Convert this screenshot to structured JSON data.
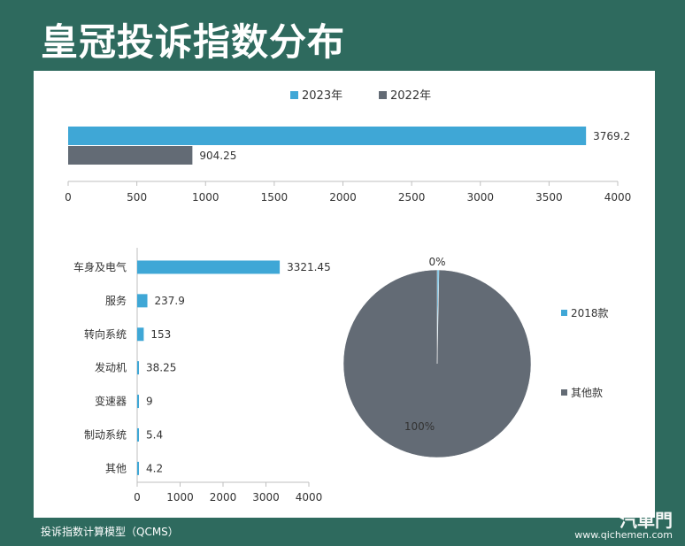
{
  "title": "皇冠投诉指数分布",
  "footer": "投诉指数计算模型（QCMS）",
  "watermark": {
    "logo": "汽車門",
    "url": "www.qichemen.com"
  },
  "colors": {
    "blue": "#3fa7d6",
    "gray": "#636b75",
    "background": "#2e6a5e"
  },
  "chart_data": [
    {
      "type": "bar",
      "orientation": "horizontal",
      "categories": [
        ""
      ],
      "series": [
        {
          "name": "2023年",
          "values": [
            3769.2
          ],
          "labels": [
            "3769.2"
          ]
        },
        {
          "name": "2022年",
          "values": [
            904.25
          ],
          "labels": [
            "904.25"
          ]
        }
      ],
      "xlim": [
        0,
        4000
      ],
      "xticks": [
        0,
        500,
        1000,
        1500,
        2000,
        2500,
        3000,
        3500,
        4000
      ],
      "legend": "top-center"
    },
    {
      "type": "bar",
      "orientation": "horizontal",
      "categories": [
        "车身及电气",
        "服务",
        "转向系统",
        "发动机",
        "变速器",
        "制动系统",
        "其他"
      ],
      "values": [
        3321.45,
        237.9,
        153,
        38.25,
        9,
        5.4,
        4.2
      ],
      "labels": [
        "3321.45",
        "237.9",
        "153",
        "38.25",
        "9",
        "5.4",
        "4.2"
      ],
      "xlim": [
        0,
        4000
      ],
      "xticks": [
        0,
        1000,
        2000,
        3000,
        4000
      ]
    },
    {
      "type": "pie",
      "slices": [
        {
          "name": "2018款",
          "value": 0.3,
          "label": "0%"
        },
        {
          "name": "其他款",
          "value": 99.7,
          "label": "100%"
        }
      ],
      "legend": "right"
    }
  ]
}
